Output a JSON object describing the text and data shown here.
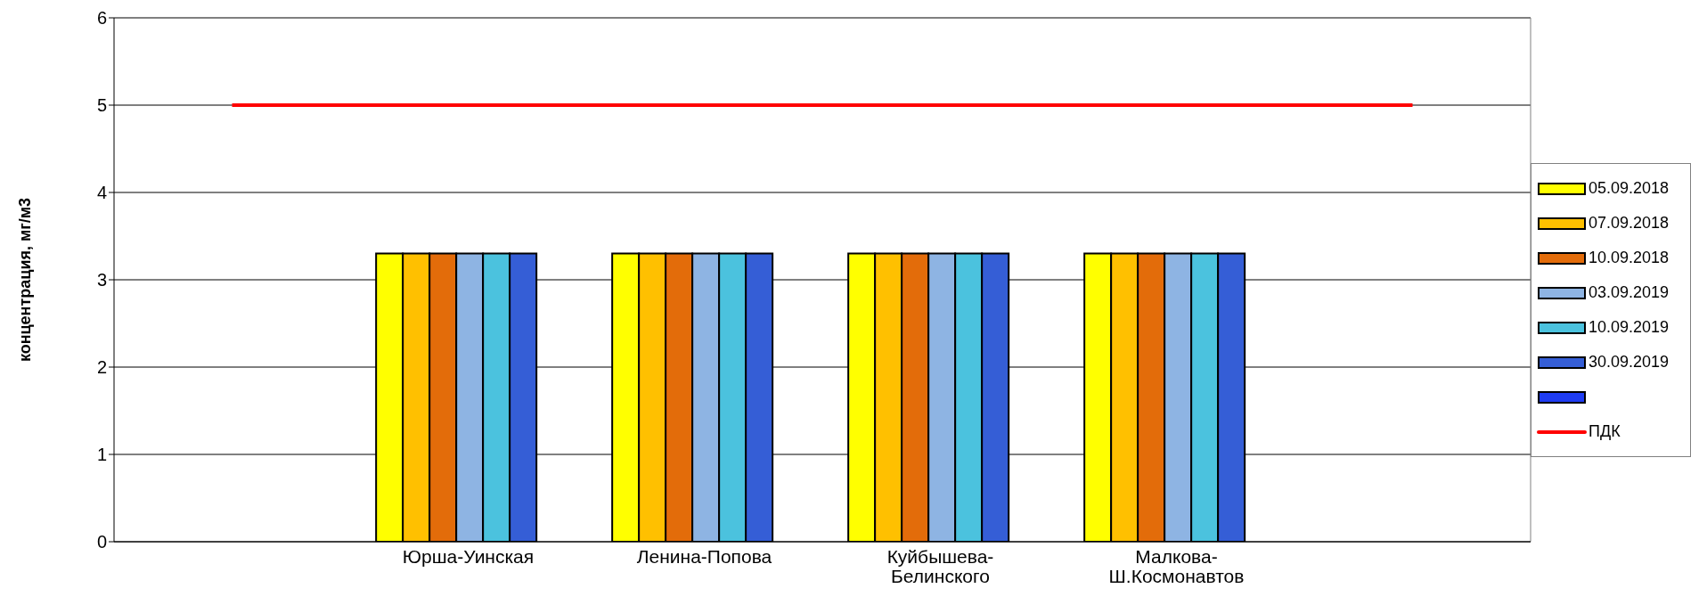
{
  "chart_data": {
    "type": "bar",
    "ylabel": "концентрация, мг/м3",
    "categories": [
      null,
      "Юрша-Уинская",
      "Ленина-Попова",
      "Куйбышева-Белинского",
      "Малкова-Ш.Космонавтов",
      null
    ],
    "series": [
      {
        "name": "05.09.2018",
        "color": "#ffff00",
        "values": [
          null,
          3.3,
          3.3,
          3.3,
          3.3,
          null
        ]
      },
      {
        "name": "07.09.2018",
        "color": "#ffc000",
        "values": [
          null,
          3.3,
          3.3,
          3.3,
          3.3,
          null
        ]
      },
      {
        "name": "10.09.2018",
        "color": "#e36c0a",
        "values": [
          null,
          3.3,
          3.3,
          3.3,
          3.3,
          null
        ]
      },
      {
        "name": "03.09.2019",
        "color": "#8eb4e3",
        "values": [
          null,
          3.3,
          3.3,
          3.3,
          3.3,
          null
        ]
      },
      {
        "name": "10.09.2019",
        "color": "#4bc2de",
        "values": [
          null,
          3.3,
          3.3,
          3.3,
          3.3,
          null
        ]
      },
      {
        "name": "30.09.2019",
        "color": "#355ed6",
        "values": [
          null,
          3.3,
          3.3,
          3.3,
          3.3,
          null
        ]
      },
      {
        "color": "#1f3cf2",
        "values": [
          null,
          null,
          null,
          null,
          null,
          null
        ]
      },
      {
        "name": "ПДК",
        "type": "line",
        "color": "#ff0000",
        "values": [
          5,
          5,
          5,
          5,
          5,
          5
        ]
      }
    ],
    "ylim": [
      0,
      6
    ],
    "yticks": [
      0,
      1,
      2,
      3,
      4,
      5,
      6
    ],
    "grid": "y",
    "legend": "right",
    "marker": "none"
  }
}
